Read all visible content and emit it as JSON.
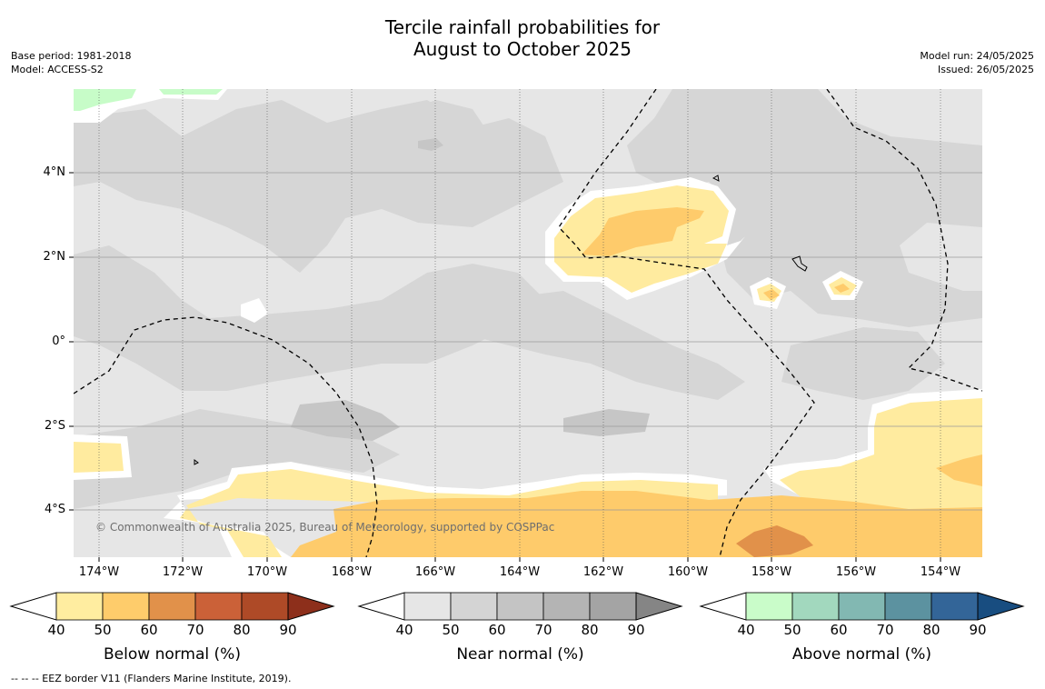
{
  "title": {
    "line1": "Tercile rainfall probabilities for",
    "line2": "August to October 2025"
  },
  "meta_left": {
    "base_period": "Base period: 1981-2018",
    "model": "Model: ACCESS-S2"
  },
  "meta_right": {
    "model_run": "Model run: 24/05/2025",
    "issued": "Issued: 26/05/2025"
  },
  "map": {
    "lat_labels": [
      "4°N",
      "2°N",
      "0°",
      "2°S",
      "4°S"
    ],
    "lon_labels": [
      "174°W",
      "172°W",
      "170°W",
      "168°W",
      "166°W",
      "164°W",
      "162°W",
      "160°W",
      "158°W",
      "156°W",
      "154°W"
    ],
    "copyright": "© Commonwealth of Australia 2025, Bureau of Meteorology, supported by COSPPac",
    "colors": {
      "background_near": "#e6e6e6",
      "near_50": "#d6d6d6",
      "near_60": "#c6c6c6",
      "below_40": "#ffeb9f",
      "below_50": "#fecb6b",
      "below_60": "#e1914a",
      "above_40": "#c7fcc8",
      "eez_border": "#000000"
    }
  },
  "colorbars": [
    {
      "title": "Below normal (%)",
      "ticks": [
        "40",
        "50",
        "60",
        "70",
        "80",
        "90"
      ],
      "colors": [
        "#ffeda0",
        "#fecc6b",
        "#e1914a",
        "#cb6138",
        "#ae4a27",
        "#8d2f1b"
      ]
    },
    {
      "title": "Near normal (%)",
      "ticks": [
        "40",
        "50",
        "60",
        "70",
        "80",
        "90"
      ],
      "colors": [
        "#e6e6e6",
        "#d4d4d4",
        "#c4c4c4",
        "#b4b4b4",
        "#a4a4a4",
        "#858585"
      ]
    },
    {
      "title": "Above normal (%)",
      "ticks": [
        "40",
        "50",
        "60",
        "70",
        "80",
        "90"
      ],
      "colors": [
        "#c9fcc9",
        "#a2d8be",
        "#82b8b2",
        "#5c92a0",
        "#336598",
        "#184d80"
      ]
    }
  ],
  "footnote": "--  --  -- EEZ border V11 (Flanders Marine Institute, 2019)."
}
